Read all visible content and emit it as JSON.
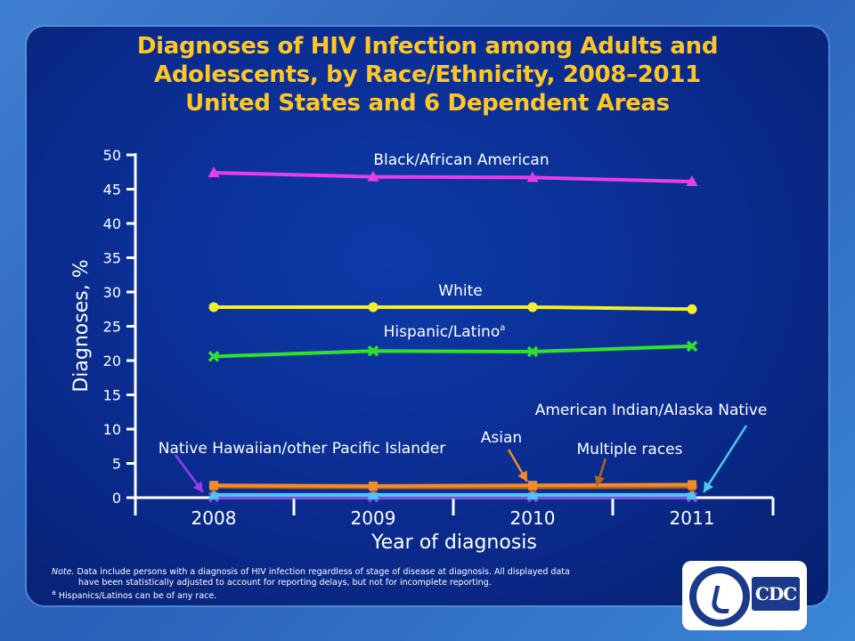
{
  "title": {
    "line1": "Diagnoses of HIV Infection among Adults and",
    "line2": "Adolescents, by Race/Ethnicity, 2008–2011",
    "line3": "United States and 6 Dependent Areas"
  },
  "notes": {
    "note_label": "Note.",
    "note_text1": "Data include persons with a diagnosis of HIV infection regardless of stage of disease at diagnosis. All displayed data",
    "note_text2": "have been statistically adjusted to account for reporting delays, but not for incomplete reporting.",
    "footnote_mark": "a",
    "footnote_text": "Hispanics/Latinos can be of any race."
  },
  "logo": {
    "text": "CDC"
  },
  "colors": {
    "title": "#ffc726",
    "panel": "#0a2b8e",
    "axis": "#ffffff"
  },
  "chart_data": {
    "type": "line",
    "xlabel": "Year of diagnosis",
    "ylabel": "Diagnoses, %",
    "ylim": [
      0,
      50
    ],
    "yticks": [
      0,
      5,
      10,
      15,
      20,
      25,
      30,
      35,
      40,
      45,
      50
    ],
    "categories": [
      "2008",
      "2009",
      "2010",
      "2011"
    ],
    "series": [
      {
        "name": "Black/African American",
        "values": [
          47.4,
          46.8,
          46.7,
          46.1
        ],
        "color": "#e83ee8",
        "marker": "triangle"
      },
      {
        "name": "White",
        "values": [
          27.8,
          27.8,
          27.8,
          27.5
        ],
        "color": "#f4ef2a",
        "marker": "circle"
      },
      {
        "name": "Hispanic/Latino",
        "superscript": "a",
        "values": [
          20.6,
          21.4,
          21.3,
          22.1
        ],
        "color": "#2fe02f",
        "marker": "x"
      },
      {
        "name": "Asian",
        "values": [
          1.8,
          1.7,
          1.8,
          1.9
        ],
        "color": "#f28c28",
        "marker": "square"
      },
      {
        "name": "Multiple races",
        "values": [
          1.6,
          1.5,
          1.5,
          1.6
        ],
        "color": "#b5651d",
        "marker": "circle"
      },
      {
        "name": "American Indian/Alaska Native",
        "values": [
          0.4,
          0.4,
          0.4,
          0.4
        ],
        "color": "#4cc8f0",
        "marker": "triangle"
      },
      {
        "name": "Native Hawaiian/other Pacific Islander",
        "values": [
          0.1,
          0.1,
          0.1,
          0.1
        ],
        "color": "#9a3cf0",
        "marker": "x"
      }
    ]
  }
}
